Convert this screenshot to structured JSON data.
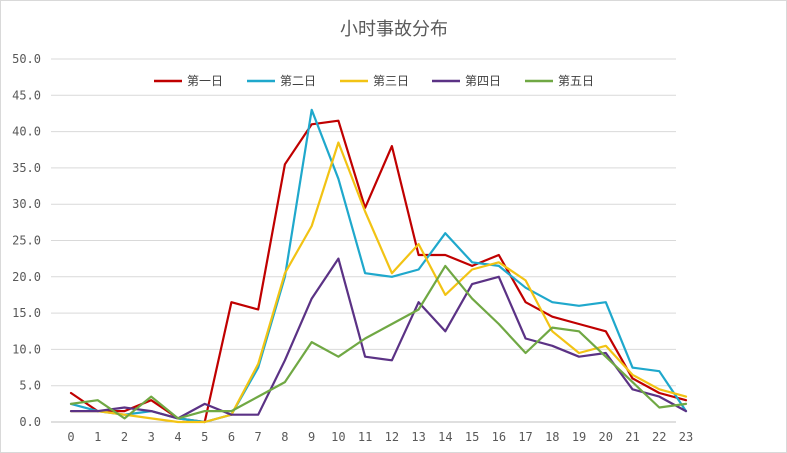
{
  "chart_data": {
    "type": "line",
    "title": "小时事故分布",
    "xlabel": "",
    "ylabel": "",
    "categories": [
      "0",
      "1",
      "2",
      "3",
      "4",
      "5",
      "6",
      "7",
      "8",
      "9",
      "10",
      "11",
      "12",
      "13",
      "14",
      "15",
      "16",
      "17",
      "18",
      "19",
      "20",
      "21",
      "22",
      "23"
    ],
    "ylim": [
      0,
      50
    ],
    "yticks": [
      "0.0",
      "5.0",
      "10.0",
      "15.0",
      "20.0",
      "25.0",
      "30.0",
      "35.0",
      "40.0",
      "45.0",
      "50.0"
    ],
    "grid": "horizontal",
    "legend_position": "top",
    "series": [
      {
        "name": "第一日",
        "color": "#c00000",
        "values": [
          4,
          1.5,
          1.5,
          3,
          0.5,
          0,
          16.5,
          15.5,
          35.5,
          41,
          41.5,
          29.5,
          38,
          23,
          23,
          21.5,
          23,
          16.5,
          14.5,
          13.5,
          12.5,
          6,
          4,
          3
        ]
      },
      {
        "name": "第二日",
        "color": "#1fa8cc",
        "values": [
          2.5,
          1.5,
          1,
          1.5,
          0.5,
          0,
          1,
          7.5,
          20,
          43,
          33.5,
          20.5,
          20,
          21,
          26,
          22,
          21.5,
          18.5,
          16.5,
          16,
          16.5,
          7.5,
          7,
          1.5
        ]
      },
      {
        "name": "第三日",
        "color": "#f2c314",
        "values": [
          1.5,
          1.5,
          1,
          0.5,
          0,
          0,
          1,
          8,
          20.5,
          27,
          38.5,
          29,
          20.5,
          24.5,
          17.5,
          21,
          22,
          19.5,
          12.5,
          9.5,
          10.5,
          6.5,
          4.5,
          3.5
        ]
      },
      {
        "name": "第四日",
        "color": "#5b3285",
        "values": [
          1.5,
          1.5,
          2,
          1.5,
          0.5,
          2.5,
          1,
          1,
          8.5,
          17,
          22.5,
          9,
          8.5,
          16.5,
          12.5,
          19,
          20,
          11.5,
          10.5,
          9,
          9.5,
          4.5,
          3.5,
          1.5
        ]
      },
      {
        "name": "第五日",
        "color": "#70a844",
        "values": [
          2.5,
          3,
          0.5,
          3.5,
          0.5,
          1.5,
          1.5,
          3.5,
          5.5,
          11,
          9,
          11.5,
          13.5,
          15.5,
          21.5,
          17,
          13.5,
          9.5,
          13,
          12.5,
          9,
          5.5,
          2,
          2.5
        ]
      }
    ]
  }
}
